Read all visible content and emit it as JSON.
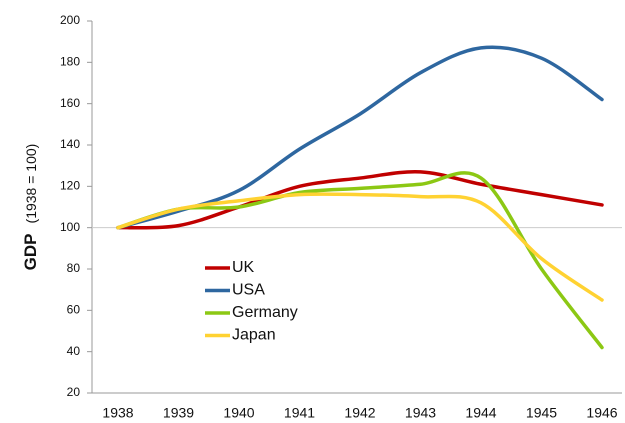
{
  "chart_data": {
    "type": "line",
    "y_label": "GDP",
    "y_label_note": "(1938 = 100)",
    "categories": [
      "1938",
      "1939",
      "1940",
      "1941",
      "1942",
      "1943",
      "1944",
      "1945",
      "1946"
    ],
    "series": [
      {
        "name": "UK",
        "color": "#c00000",
        "values": [
          100,
          101,
          110,
          120,
          124,
          127,
          121,
          116,
          111
        ]
      },
      {
        "name": "USA",
        "color": "#2e67a0",
        "values": [
          100,
          108,
          118,
          138,
          155,
          175,
          187,
          182,
          162
        ]
      },
      {
        "name": "Germany",
        "color": "#8cc814",
        "values": [
          100,
          109,
          110,
          117,
          119,
          121,
          124,
          80,
          42
        ]
      },
      {
        "name": "Japan",
        "color": "#ffd232",
        "values": [
          100,
          109,
          113,
          116,
          116,
          115,
          112,
          85,
          65
        ]
      }
    ],
    "ylim": [
      20,
      200
    ],
    "yticks": [
      20,
      40,
      60,
      80,
      100,
      120,
      140,
      160,
      180,
      200
    ],
    "reference_line": 100,
    "legend": "lower left"
  }
}
